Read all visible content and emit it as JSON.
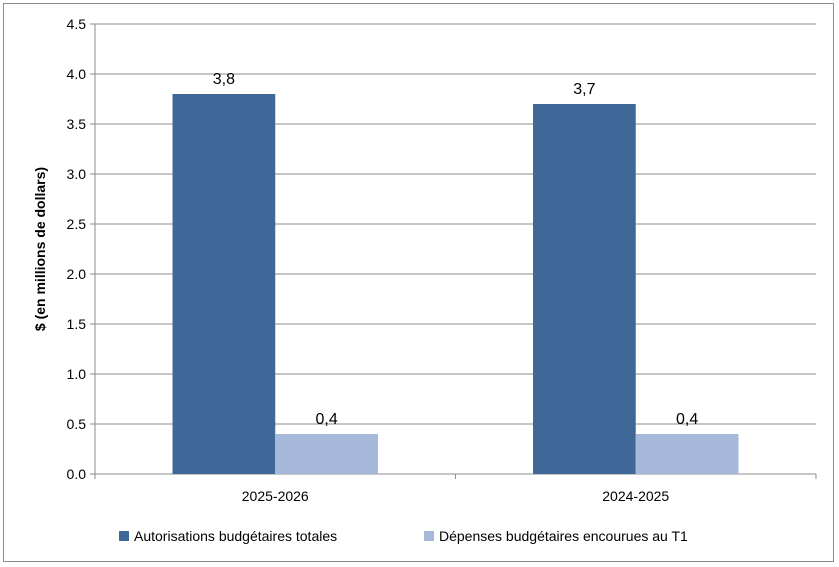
{
  "chart_data": {
    "type": "bar",
    "title": "",
    "ylabel": "$ (en millions de dollars)",
    "xlabel": "",
    "categories": [
      "2025-2026",
      "2024-2025"
    ],
    "series": [
      {
        "name": "Autorisations budgétaires totales",
        "values": [
          3.8,
          3.7
        ],
        "labels": [
          "3,8",
          "3,7"
        ],
        "color": "#3f6899"
      },
      {
        "name": "Dépenses budgétaires encourues au T1",
        "values": [
          0.4,
          0.4
        ],
        "labels": [
          "0,4",
          "0,4"
        ],
        "color": "#a7b9da"
      }
    ],
    "ylim": [
      0,
      4.5
    ],
    "yticks": [
      "0.0",
      "0.5",
      "1.0",
      "1.5",
      "2.0",
      "2.5",
      "3.0",
      "3.5",
      "4.0",
      "4.5"
    ],
    "grid": true,
    "legend_position": "bottom"
  }
}
